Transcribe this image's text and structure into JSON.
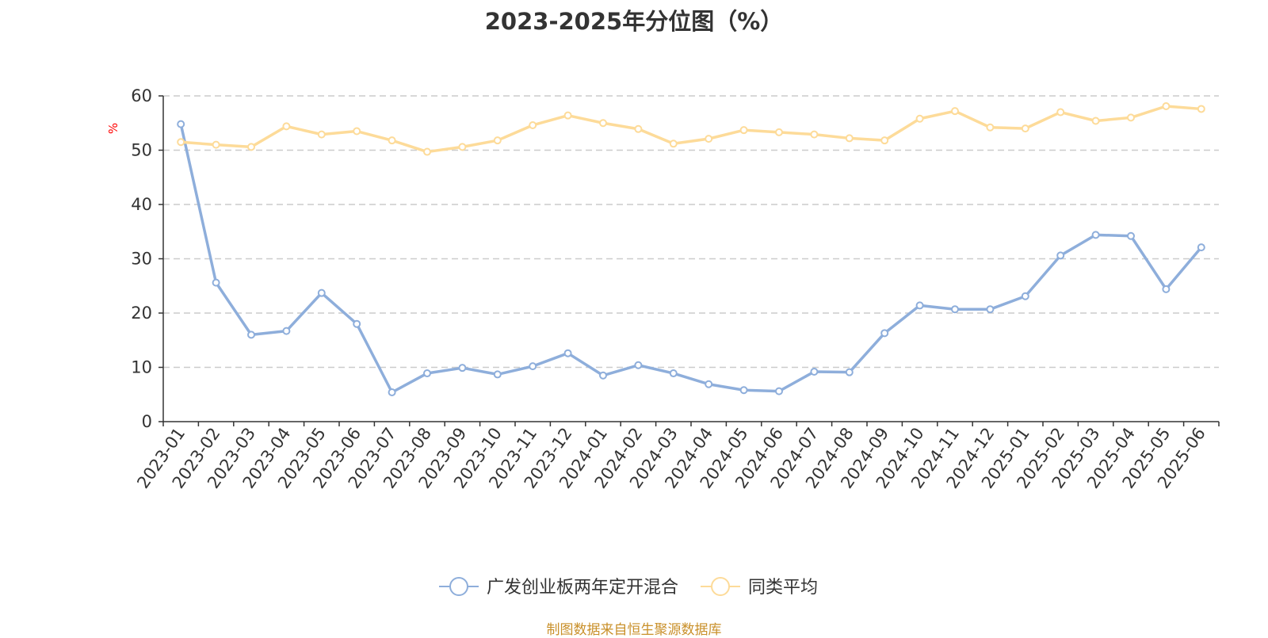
{
  "chart_data": {
    "type": "line",
    "title": "2023-2025年分位图（%）",
    "ylabel": "%",
    "xlabel": "",
    "ylim": [
      0,
      60
    ],
    "yticks": [
      0,
      10,
      20,
      30,
      40,
      50,
      60
    ],
    "grid": true,
    "legend_position": "bottom",
    "categories": [
      "2023-01",
      "2023-02",
      "2023-03",
      "2023-04",
      "2023-05",
      "2023-06",
      "2023-07",
      "2023-08",
      "2023-09",
      "2023-10",
      "2023-11",
      "2023-12",
      "2024-01",
      "2024-02",
      "2024-03",
      "2024-04",
      "2024-05",
      "2024-06",
      "2024-07",
      "2024-08",
      "2024-09",
      "2024-10",
      "2024-11",
      "2024-12",
      "2025-01",
      "2025-02",
      "2025-03",
      "2025-04",
      "2025-05",
      "2025-06"
    ],
    "series": [
      {
        "name": "广发创业板两年定开混合",
        "color": "#8eaedb",
        "values": [
          54.8,
          25.6,
          16.0,
          16.7,
          23.7,
          18.0,
          5.4,
          8.9,
          9.9,
          8.7,
          10.2,
          12.6,
          8.5,
          10.4,
          8.9,
          6.9,
          5.8,
          5.6,
          9.2,
          9.1,
          16.3,
          21.4,
          20.7,
          20.7,
          23.1,
          30.6,
          34.4,
          34.2,
          24.4,
          32.1
        ]
      },
      {
        "name": "同类平均",
        "color": "#fddb99",
        "values": [
          51.5,
          51.0,
          50.6,
          54.4,
          52.9,
          53.5,
          51.8,
          49.7,
          50.6,
          51.8,
          54.6,
          56.4,
          55.0,
          53.9,
          51.2,
          52.1,
          53.7,
          53.3,
          52.9,
          52.2,
          51.8,
          55.8,
          57.2,
          54.2,
          54.0,
          57.0,
          55.4,
          56.0,
          58.1,
          57.6
        ]
      }
    ]
  },
  "source": "制图数据来自恒生聚源数据库"
}
